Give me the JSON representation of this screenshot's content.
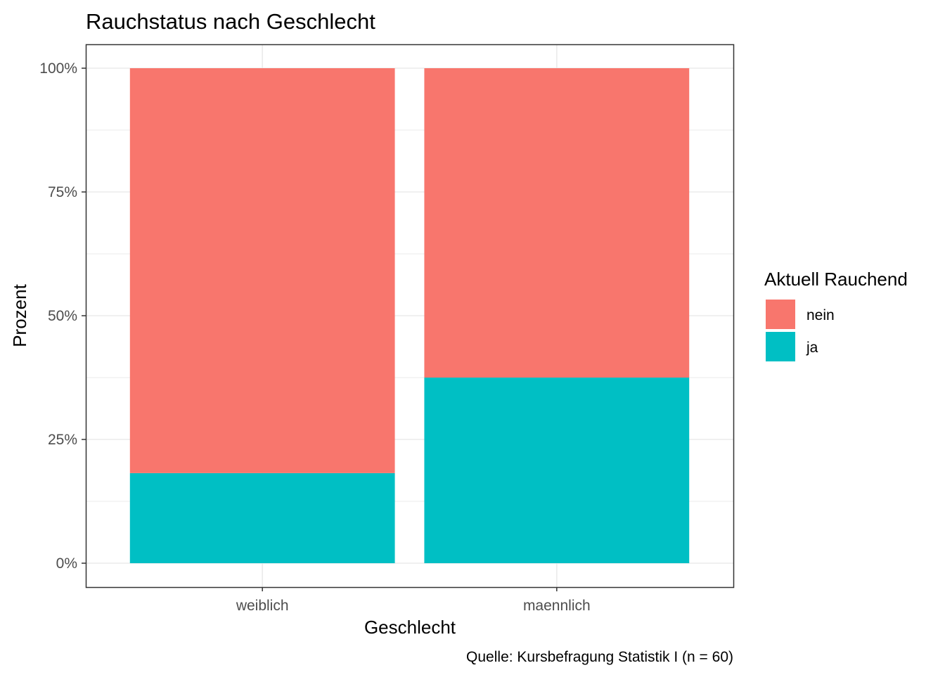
{
  "chart_data": {
    "type": "bar",
    "stacked": true,
    "normalized": true,
    "title": "Rauchstatus nach Geschlecht",
    "xlabel": "Geschlecht",
    "ylabel": "Prozent",
    "caption": "Quelle: Kursbefragung Statistik I (n = 60)",
    "categories": [
      "weiblich",
      "maennlich"
    ],
    "ylim": [
      0,
      1
    ],
    "yticks": [
      0,
      0.25,
      0.5,
      0.75,
      1.0
    ],
    "ytick_labels": [
      "0%",
      "25%",
      "50%",
      "75%",
      "100%"
    ],
    "grid": true,
    "legend": {
      "title": "Aktuell Rauchend",
      "position": "right"
    },
    "series": [
      {
        "name": "ja",
        "color": "#00BFC4",
        "values": [
          0.182,
          0.375
        ]
      },
      {
        "name": "nein",
        "color": "#F8766D",
        "values": [
          0.818,
          0.625
        ]
      }
    ],
    "legend_order": [
      "nein",
      "ja"
    ]
  }
}
